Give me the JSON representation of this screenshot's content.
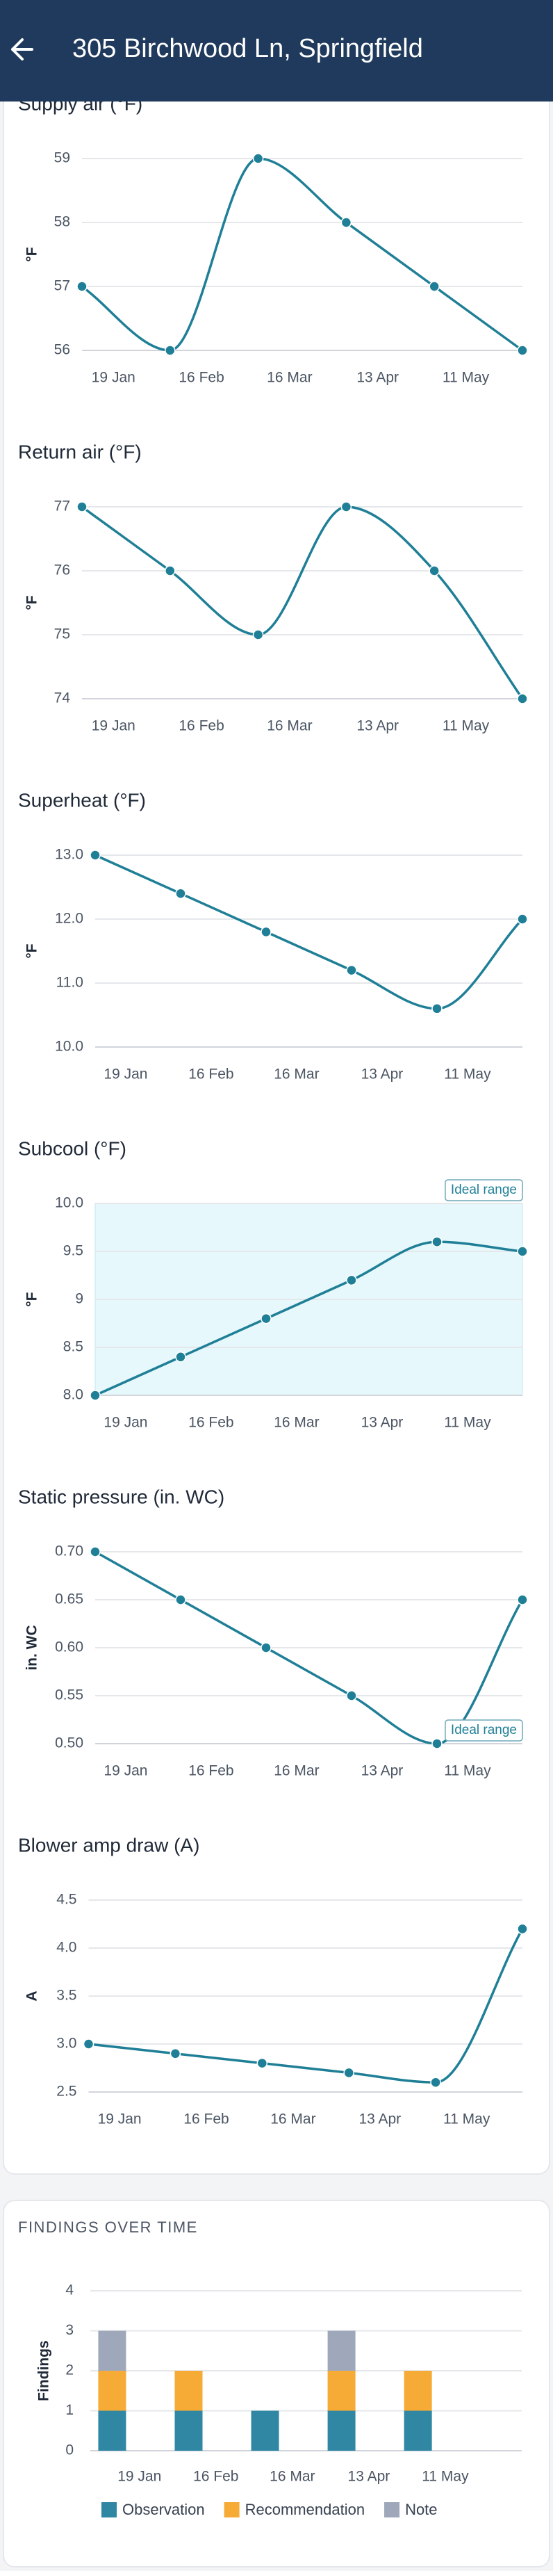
{
  "header": {
    "title": "305 Birchwood Ln, Springfield"
  },
  "chart_data": [
    {
      "type": "line",
      "title": "Supply air (°F)",
      "ylabel": "°F",
      "color": "#1f7f96",
      "x": [
        "9 Jan",
        "6 Feb",
        "6 Mar",
        "3 Apr",
        "1 May",
        "29 May"
      ],
      "values": [
        57,
        56,
        59,
        58,
        57,
        56
      ],
      "xlim": [
        "9 Jan",
        "29 May"
      ],
      "xticks": [
        "19 Jan",
        "16 Feb",
        "16 Mar",
        "13 Apr",
        "11 May"
      ],
      "ylim": [
        56,
        59
      ],
      "yticks": [
        56,
        57,
        58,
        59
      ],
      "grid": true
    },
    {
      "type": "line",
      "title": "Return air (°F)",
      "ylabel": "°F",
      "color": "#1f7f96",
      "x": [
        "9 Jan",
        "6 Feb",
        "6 Mar",
        "3 Apr",
        "1 May",
        "29 May"
      ],
      "values": [
        77,
        76,
        75,
        77,
        76,
        74
      ],
      "xlim": [
        "9 Jan",
        "29 May"
      ],
      "xticks": [
        "19 Jan",
        "16 Feb",
        "16 Mar",
        "13 Apr",
        "11 May"
      ],
      "ylim": [
        74,
        77
      ],
      "yticks": [
        74,
        75,
        76,
        77
      ],
      "grid": true
    },
    {
      "type": "line",
      "title": "Superheat (°F)",
      "ylabel": "°F",
      "color": "#1f7f96",
      "x": [
        "9 Jan",
        "6 Feb",
        "6 Mar",
        "3 Apr",
        "1 May",
        "29 May"
      ],
      "values": [
        13.0,
        12.4,
        11.8,
        11.2,
        10.6,
        12.0
      ],
      "xlim": [
        "9 Jan",
        "29 May"
      ],
      "xticks": [
        "19 Jan",
        "16 Feb",
        "16 Mar",
        "13 Apr",
        "11 May"
      ],
      "ylim": [
        10,
        13
      ],
      "yticks": [
        {
          "value": 10,
          "label": "10.0"
        },
        {
          "value": 11,
          "label": "11.0"
        },
        {
          "value": 12,
          "label": "12.0"
        },
        {
          "value": 13,
          "label": "13.0"
        }
      ],
      "grid": true
    },
    {
      "type": "line",
      "title": "Subcool (°F)",
      "ylabel": "°F",
      "color": "#1f7f96",
      "x": [
        "9 Jan",
        "6 Feb",
        "6 Mar",
        "3 Apr",
        "1 May",
        "29 May"
      ],
      "values": [
        8.0,
        8.4,
        8.8,
        9.2,
        9.6,
        9.5
      ],
      "xlim": [
        "9 Jan",
        "29 May"
      ],
      "xticks": [
        "19 Jan",
        "16 Feb",
        "16 Mar",
        "13 Apr",
        "11 May"
      ],
      "ylim": [
        8,
        10
      ],
      "yticks": [
        {
          "value": 8,
          "label": "8.0"
        },
        8.5,
        9,
        9.5,
        {
          "value": 10,
          "label": "10.0"
        }
      ],
      "grid": true,
      "ideal_range": [
        8,
        10
      ],
      "ideal_label": "Ideal range"
    },
    {
      "type": "line",
      "title": "Static pressure (in. WC)",
      "ylabel": "in. WC",
      "color": "#1f7f96",
      "x": [
        "9 Jan",
        "6 Feb",
        "6 Mar",
        "3 Apr",
        "1 May",
        "29 May"
      ],
      "values": [
        0.7,
        0.65,
        0.6,
        0.55,
        0.5,
        0.65
      ],
      "xlim": [
        "9 Jan",
        "29 May"
      ],
      "xticks": [
        "19 Jan",
        "16 Feb",
        "16 Mar",
        "13 Apr",
        "11 May"
      ],
      "ylim": [
        0.5,
        0.7
      ],
      "yticks": [
        {
          "value": 0.5,
          "label": "0.50"
        },
        0.55,
        {
          "value": 0.6,
          "label": "0.60"
        },
        0.65,
        {
          "value": 0.7,
          "label": "0.70"
        }
      ],
      "grid": true,
      "ideal_range": [
        null,
        0.5
      ],
      "ideal_label": "Ideal range"
    },
    {
      "type": "line",
      "title": "Blower amp draw (A)",
      "ylabel": "A",
      "color": "#1f7f96",
      "x": [
        "9 Jan",
        "6 Feb",
        "6 Mar",
        "3 Apr",
        "1 May",
        "29 May"
      ],
      "values": [
        3.0,
        2.9,
        2.8,
        2.7,
        2.6,
        4.2
      ],
      "xlim": [
        "9 Jan",
        "29 May"
      ],
      "xticks": [
        "19 Jan",
        "16 Feb",
        "16 Mar",
        "13 Apr",
        "11 May"
      ],
      "ylim": [
        2.5,
        4.5
      ],
      "yticks": [
        2.5,
        {
          "value": 3,
          "label": "3.0"
        },
        3.5,
        {
          "value": 4,
          "label": "4.0"
        },
        4.5
      ],
      "grid": true
    },
    {
      "type": "stacked_bar",
      "title": "FINDINGS OVER TIME",
      "ylabel": "Findings",
      "x": [
        "9 Jan",
        "6 Feb",
        "6 Mar",
        "3 Apr",
        "1 May"
      ],
      "series": [
        {
          "name": "Observation",
          "color": "#2f87a3",
          "values": [
            1,
            1,
            1,
            1,
            1
          ]
        },
        {
          "name": "Recommendation",
          "color": "#f5ab35",
          "values": [
            1,
            1,
            0,
            1,
            1
          ]
        },
        {
          "name": "Note",
          "color": "#9fa8ba",
          "values": [
            1,
            0,
            0,
            1,
            0
          ]
        }
      ],
      "xlim": [
        "1 Jan",
        "8 Jun"
      ],
      "xticks": [
        "19 Jan",
        "16 Feb",
        "16 Mar",
        "13 Apr",
        "11 May"
      ],
      "ylim": [
        0,
        4
      ],
      "yticks": [
        0,
        1,
        2,
        3,
        4
      ],
      "grid": true
    }
  ]
}
